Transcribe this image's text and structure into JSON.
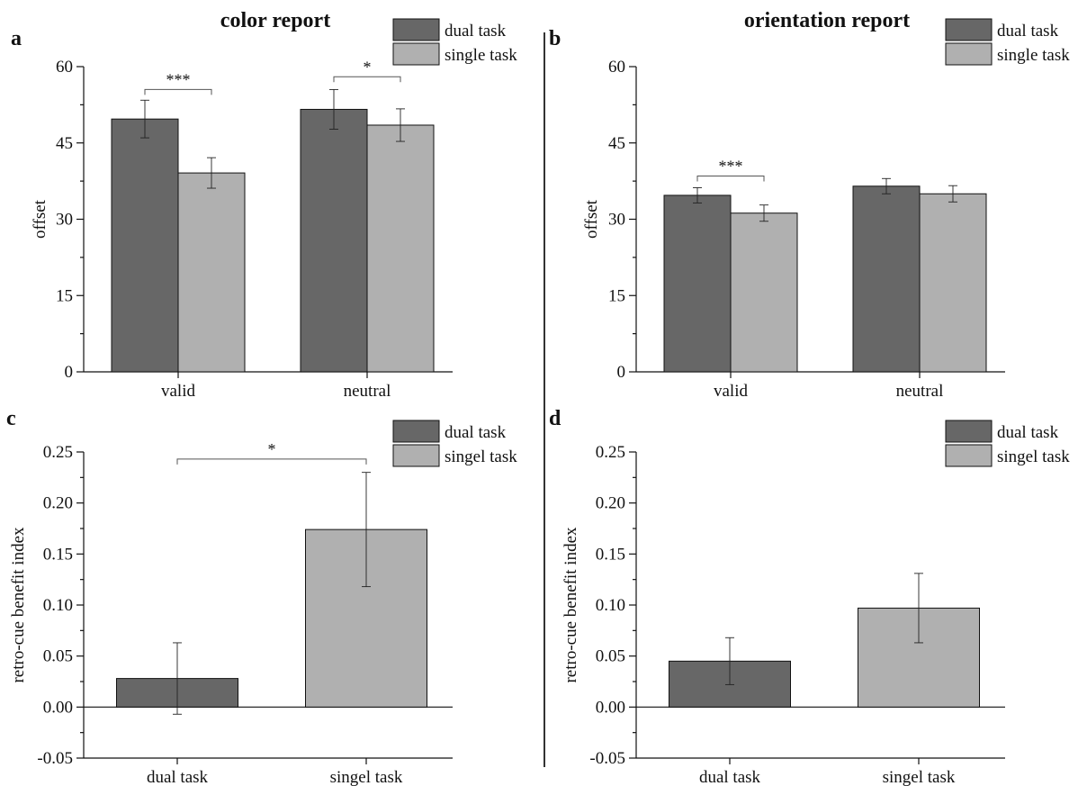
{
  "colors": {
    "dual": "#676767",
    "single": "#b0b0b0"
  },
  "chart_data": [
    {
      "panel": "a",
      "type": "bar",
      "title": "color report",
      "xlabel": "",
      "ylabel": "offset",
      "ylim": [
        0,
        60
      ],
      "yticks": [
        0,
        15,
        30,
        45,
        60
      ],
      "categories": [
        "valid",
        "neutral"
      ],
      "legend": [
        "dual task",
        "single task"
      ],
      "legend_position": "top-right",
      "series": [
        {
          "name": "dual task",
          "values": [
            49.7,
            51.6
          ],
          "errors": [
            3.7,
            3.9
          ]
        },
        {
          "name": "single task",
          "values": [
            39.1,
            48.5
          ],
          "errors": [
            3.0,
            3.2
          ]
        }
      ],
      "annotations": [
        {
          "category": "valid",
          "label": "***",
          "level": 55.5
        },
        {
          "category": "neutral",
          "label": "*",
          "level": 58
        }
      ]
    },
    {
      "panel": "b",
      "type": "bar",
      "title": "orientation report",
      "xlabel": "",
      "ylabel": "offset",
      "ylim": [
        0,
        60
      ],
      "yticks": [
        0,
        15,
        30,
        45,
        60
      ],
      "categories": [
        "valid",
        "neutral"
      ],
      "legend": [
        "dual task",
        "single task"
      ],
      "legend_position": "top-right",
      "series": [
        {
          "name": "dual task",
          "values": [
            34.7,
            36.5
          ],
          "errors": [
            1.5,
            1.5
          ]
        },
        {
          "name": "single task",
          "values": [
            31.2,
            35.0
          ],
          "errors": [
            1.6,
            1.6
          ]
        }
      ],
      "annotations": [
        {
          "category": "valid",
          "label": "***",
          "level": 38.5
        }
      ]
    },
    {
      "panel": "c",
      "type": "bar",
      "title": "",
      "xlabel": "",
      "ylabel": "retro-cue benefit index",
      "ylim": [
        -0.05,
        0.25
      ],
      "yticks": [
        "-0.05",
        "0.00",
        "0.05",
        "0.10",
        "0.15",
        "0.20",
        "0.25"
      ],
      "categories": [
        "dual task",
        "singel task"
      ],
      "legend": [
        "dual task",
        "singel task"
      ],
      "legend_position": "top-right",
      "values": [
        0.028,
        0.174
      ],
      "errors": [
        0.035,
        0.056
      ],
      "annotations": [
        {
          "label": "*",
          "level": 0.243
        }
      ]
    },
    {
      "panel": "d",
      "type": "bar",
      "title": "",
      "xlabel": "",
      "ylabel": "retro-cue benefit index",
      "ylim": [
        -0.05,
        0.25
      ],
      "yticks": [
        "-0.05",
        "0.00",
        "0.05",
        "0.10",
        "0.15",
        "0.20",
        "0.25"
      ],
      "categories": [
        "dual task",
        "singel task"
      ],
      "legend": [
        "dual task",
        "singel task"
      ],
      "legend_position": "top-right",
      "values": [
        0.045,
        0.097
      ],
      "errors": [
        0.023,
        0.034
      ],
      "annotations": []
    }
  ]
}
